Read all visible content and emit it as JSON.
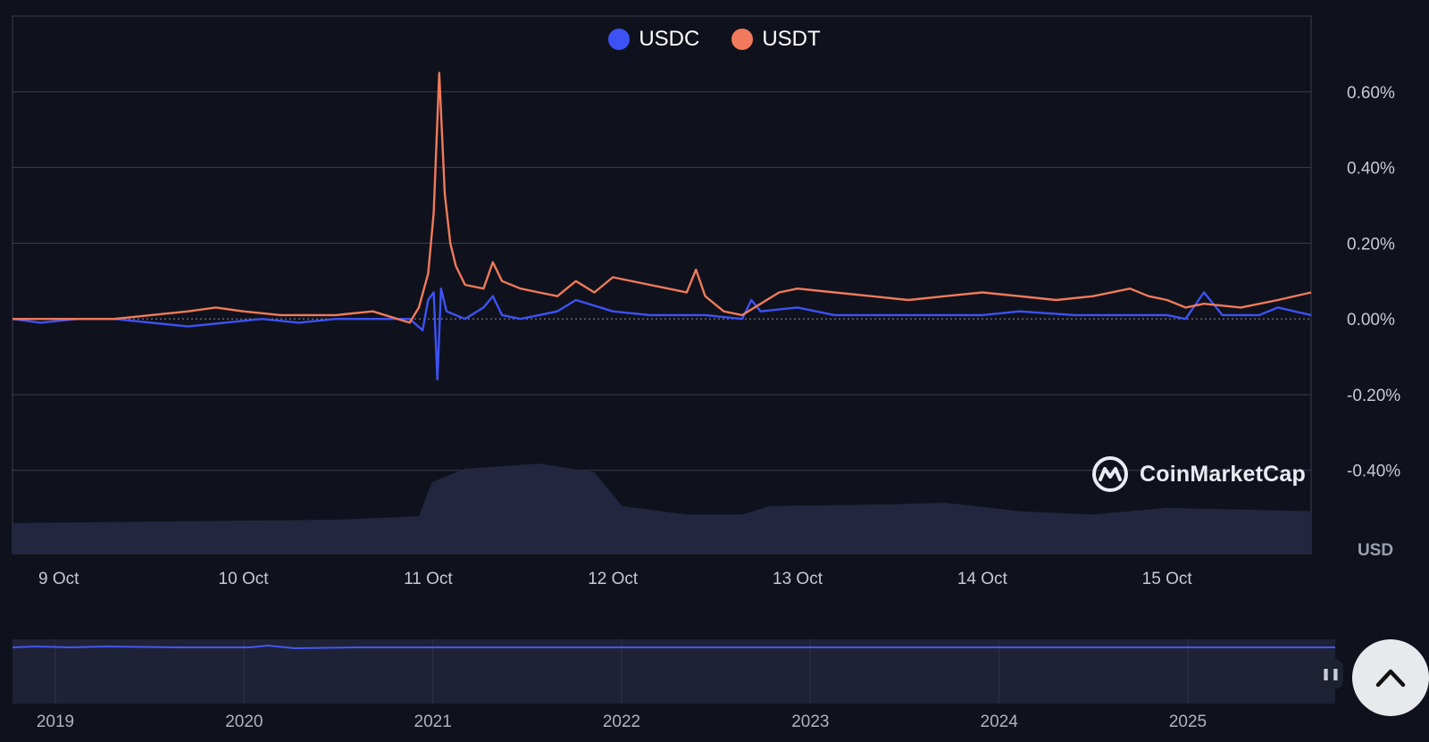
{
  "legend": {
    "items": [
      {
        "label": "USDC",
        "color": "#3d52f5"
      },
      {
        "label": "USDT",
        "color": "#f07a5b"
      }
    ]
  },
  "watermark": {
    "text": "CoinMarketCap"
  },
  "colors": {
    "background": "#0f121c",
    "grid": "#3a3f4d",
    "volume": "#22263f",
    "navigator_fill": "#1e2237",
    "navigator_line": "#4656f0"
  },
  "chart_data": {
    "type": "line",
    "x_ticks": [
      "9 Oct",
      "10 Oct",
      "11 Oct",
      "12 Oct",
      "13 Oct",
      "14 Oct",
      "15 Oct"
    ],
    "y_ticks": [
      "0.60%",
      "0.40%",
      "0.20%",
      "0.00%",
      "-0.20%",
      "-0.40%"
    ],
    "y_values": [
      0.6,
      0.4,
      0.2,
      0.0,
      -0.2,
      -0.4
    ],
    "ylim": [
      -0.62,
      0.8
    ],
    "xlim_days": [
      8.75,
      15.78
    ],
    "volume_axis_label": "USD",
    "grid": true,
    "legend_position": "top-center",
    "series": [
      {
        "name": "USDC",
        "color": "#3d52f5",
        "points": [
          [
            8.75,
            0.0
          ],
          [
            8.9,
            -0.01
          ],
          [
            9.1,
            0.0
          ],
          [
            9.3,
            0.0
          ],
          [
            9.5,
            -0.01
          ],
          [
            9.7,
            -0.02
          ],
          [
            9.9,
            -0.01
          ],
          [
            10.1,
            0.0
          ],
          [
            10.3,
            -0.01
          ],
          [
            10.5,
            0.0
          ],
          [
            10.7,
            0.0
          ],
          [
            10.9,
            0.0
          ],
          [
            10.97,
            -0.03
          ],
          [
            11.0,
            0.05
          ],
          [
            11.03,
            0.07
          ],
          [
            11.05,
            -0.16
          ],
          [
            11.07,
            0.08
          ],
          [
            11.1,
            0.02
          ],
          [
            11.2,
            0.0
          ],
          [
            11.3,
            0.03
          ],
          [
            11.35,
            0.06
          ],
          [
            11.4,
            0.01
          ],
          [
            11.5,
            0.0
          ],
          [
            11.7,
            0.02
          ],
          [
            11.8,
            0.05
          ],
          [
            12.0,
            0.02
          ],
          [
            12.2,
            0.01
          ],
          [
            12.5,
            0.01
          ],
          [
            12.7,
            0.0
          ],
          [
            12.75,
            0.05
          ],
          [
            12.8,
            0.02
          ],
          [
            13.0,
            0.03
          ],
          [
            13.2,
            0.01
          ],
          [
            13.5,
            0.01
          ],
          [
            13.8,
            0.01
          ],
          [
            14.0,
            0.01
          ],
          [
            14.2,
            0.02
          ],
          [
            14.5,
            0.01
          ],
          [
            14.8,
            0.01
          ],
          [
            15.0,
            0.01
          ],
          [
            15.1,
            0.0
          ],
          [
            15.2,
            0.07
          ],
          [
            15.3,
            0.01
          ],
          [
            15.5,
            0.01
          ],
          [
            15.6,
            0.03
          ],
          [
            15.78,
            0.01
          ]
        ]
      },
      {
        "name": "USDT",
        "color": "#f07a5b",
        "points": [
          [
            8.75,
            0.0
          ],
          [
            8.9,
            0.0
          ],
          [
            9.1,
            0.0
          ],
          [
            9.3,
            0.0
          ],
          [
            9.5,
            0.01
          ],
          [
            9.7,
            0.02
          ],
          [
            9.85,
            0.03
          ],
          [
            10.0,
            0.02
          ],
          [
            10.2,
            0.01
          ],
          [
            10.5,
            0.01
          ],
          [
            10.7,
            0.02
          ],
          [
            10.9,
            -0.01
          ],
          [
            10.95,
            0.03
          ],
          [
            11.0,
            0.12
          ],
          [
            11.03,
            0.28
          ],
          [
            11.06,
            0.65
          ],
          [
            11.09,
            0.33
          ],
          [
            11.12,
            0.2
          ],
          [
            11.15,
            0.14
          ],
          [
            11.2,
            0.09
          ],
          [
            11.3,
            0.08
          ],
          [
            11.35,
            0.15
          ],
          [
            11.4,
            0.1
          ],
          [
            11.5,
            0.08
          ],
          [
            11.6,
            0.07
          ],
          [
            11.7,
            0.06
          ],
          [
            11.8,
            0.1
          ],
          [
            11.9,
            0.07
          ],
          [
            12.0,
            0.11
          ],
          [
            12.2,
            0.09
          ],
          [
            12.4,
            0.07
          ],
          [
            12.45,
            0.13
          ],
          [
            12.5,
            0.06
          ],
          [
            12.6,
            0.02
          ],
          [
            12.7,
            0.01
          ],
          [
            12.8,
            0.04
          ],
          [
            12.9,
            0.07
          ],
          [
            13.0,
            0.08
          ],
          [
            13.2,
            0.07
          ],
          [
            13.4,
            0.06
          ],
          [
            13.6,
            0.05
          ],
          [
            13.8,
            0.06
          ],
          [
            14.0,
            0.07
          ],
          [
            14.2,
            0.06
          ],
          [
            14.4,
            0.05
          ],
          [
            14.6,
            0.06
          ],
          [
            14.8,
            0.08
          ],
          [
            14.9,
            0.06
          ],
          [
            15.0,
            0.05
          ],
          [
            15.1,
            0.03
          ],
          [
            15.2,
            0.04
          ],
          [
            15.4,
            0.03
          ],
          [
            15.6,
            0.05
          ],
          [
            15.78,
            0.07
          ]
        ]
      }
    ],
    "navigator": {
      "x_ticks": [
        "2019",
        "2020",
        "2021",
        "2022",
        "2023",
        "2024",
        "2025"
      ]
    }
  }
}
